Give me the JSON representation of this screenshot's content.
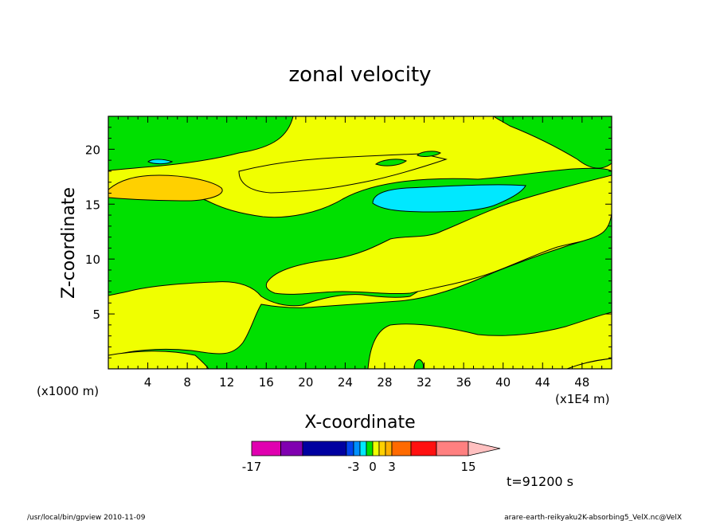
{
  "chart_data": {
    "type": "heatmap",
    "title": "zonal velocity",
    "xlabel": "X-coordinate",
    "ylabel": "Z-coordinate",
    "x_unit_label": "(x1E4 m)",
    "y_unit_label": "(x1000 m)",
    "xlim": [
      0,
      51
    ],
    "ylim": [
      0,
      23
    ],
    "x_ticks": [
      "4",
      "8",
      "12",
      "16",
      "20",
      "24",
      "28",
      "32",
      "36",
      "40",
      "44",
      "48"
    ],
    "y_ticks": [
      "5",
      "10",
      "15",
      "20"
    ],
    "time_label": "t=91200 s",
    "colorbar": {
      "tick_labels": [
        "-17",
        "-3",
        "0",
        "3",
        "15"
      ],
      "bins": [
        {
          "color": "#e000b0",
          "range": [
            -17,
            -13
          ]
        },
        {
          "color": "#8000b0",
          "range": [
            -13,
            -10
          ]
        },
        {
          "color": "#0000a0",
          "range": [
            -10,
            -4
          ]
        },
        {
          "color": "#0044ee",
          "range": [
            -4,
            -3
          ]
        },
        {
          "color": "#0090ff",
          "range": [
            -3,
            -2
          ]
        },
        {
          "color": "#00e8ff",
          "range": [
            -2,
            -1
          ]
        },
        {
          "color": "#00e000",
          "range": [
            -1,
            0
          ]
        },
        {
          "color": "#f0ff00",
          "range": [
            0,
            1
          ]
        },
        {
          "color": "#ffd000",
          "range": [
            1,
            2
          ]
        },
        {
          "color": "#ffb000",
          "range": [
            2,
            3
          ]
        },
        {
          "color": "#ff6a00",
          "range": [
            3,
            6
          ]
        },
        {
          "color": "#ff1010",
          "range": [
            6,
            10
          ]
        },
        {
          "color": "#ff8080",
          "range": [
            10,
            15
          ]
        }
      ],
      "overflow_color": "#ffc0c0"
    },
    "regions": [
      {
        "name": "positive-0-1",
        "color": "#f0ff00"
      },
      {
        "name": "negative-0-1",
        "color": "#00e000"
      },
      {
        "name": "positive-1-2",
        "color": "#ffd000"
      },
      {
        "name": "negative-1-2",
        "color": "#00e8ff"
      }
    ]
  },
  "footer": {
    "left": "/usr/local/bin/gpview   2010-11-09",
    "right": "arare-earth-reikyaku2K-absorbing5_VelX.nc@VelX"
  }
}
